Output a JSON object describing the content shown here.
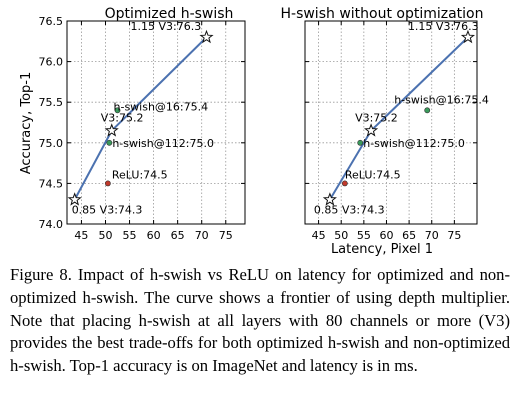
{
  "caption": "Figure 8. Impact of h-swish vs ReLU on latency for optimized and non-optimized h-swish. The curve shows a frontier of using depth multiplier. Note that placing h-swish at all layers with 80 channels or more (V3) provides the best trade-offs for both optimized h-swish and non-optimized h-swish. Top-1 accuracy is on ImageNet and latency is in ms.",
  "colors": {
    "frontier": "#4c72b0",
    "relu": "#c0392b",
    "h_swish": "#3a9a5b",
    "grid": "#999999"
  },
  "chart_data": [
    {
      "type": "scatter",
      "title": "Optimized h-swish",
      "xlabel": "",
      "ylabel": "Accuracy, Top-1",
      "xlim": [
        42,
        79
      ],
      "ylim": [
        74.0,
        76.5
      ],
      "xticks": [
        45,
        50,
        55,
        60,
        65,
        70,
        75
      ],
      "yticks": [
        74.0,
        74.5,
        75.0,
        75.5,
        76.0,
        76.5
      ],
      "xtick_labels": [
        "45",
        "50",
        "55",
        "60",
        "65",
        "70",
        "75"
      ],
      "ytick_labels": [
        "74.0",
        "74.5",
        "75.0",
        "75.5",
        "76.0",
        "76.5"
      ],
      "grid": true,
      "frontier": {
        "x": [
          43.6,
          51.3,
          71.0
        ],
        "y": [
          74.3,
          75.15,
          76.3
        ],
        "point_labels": [
          "0.85 V3:74.3",
          "V3:75.2",
          "1.15 V3:76.3"
        ]
      },
      "points": [
        {
          "label": "h-swish@16:75.4",
          "x": 52.5,
          "y": 75.4,
          "kind": "h_swish"
        },
        {
          "label": "h-swish@112:75.0",
          "x": 50.8,
          "y": 75.0,
          "kind": "h_swish"
        },
        {
          "label": "ReLU:74.5",
          "x": 50.5,
          "y": 74.5,
          "kind": "relu"
        }
      ]
    },
    {
      "type": "scatter",
      "title": "H-swish without optimization",
      "xlabel": "Latency, Pixel 1",
      "ylabel": "",
      "xlim": [
        42,
        80
      ],
      "ylim": [
        74.0,
        76.5
      ],
      "xticks": [
        45,
        50,
        55,
        60,
        65,
        70,
        75
      ],
      "yticks": [
        74.0,
        74.5,
        75.0,
        75.5,
        76.0,
        76.5
      ],
      "xtick_labels": [
        "45",
        "50",
        "55",
        "60",
        "65",
        "70",
        "75"
      ],
      "grid": true,
      "frontier": {
        "x": [
          47.5,
          56.6,
          78.0
        ],
        "y": [
          74.3,
          75.15,
          76.3
        ],
        "point_labels": [
          "0.85 V3:74.3",
          "V3:75.2",
          "1.15 V3:76.3"
        ]
      },
      "points": [
        {
          "label": "h-swish@16:75.4",
          "x": 69.0,
          "y": 75.4,
          "kind": "h_swish"
        },
        {
          "label": "h-swish@112:75.0",
          "x": 54.2,
          "y": 75.0,
          "kind": "h_swish"
        },
        {
          "label": "ReLU:74.5",
          "x": 50.8,
          "y": 74.5,
          "kind": "relu"
        }
      ]
    }
  ]
}
